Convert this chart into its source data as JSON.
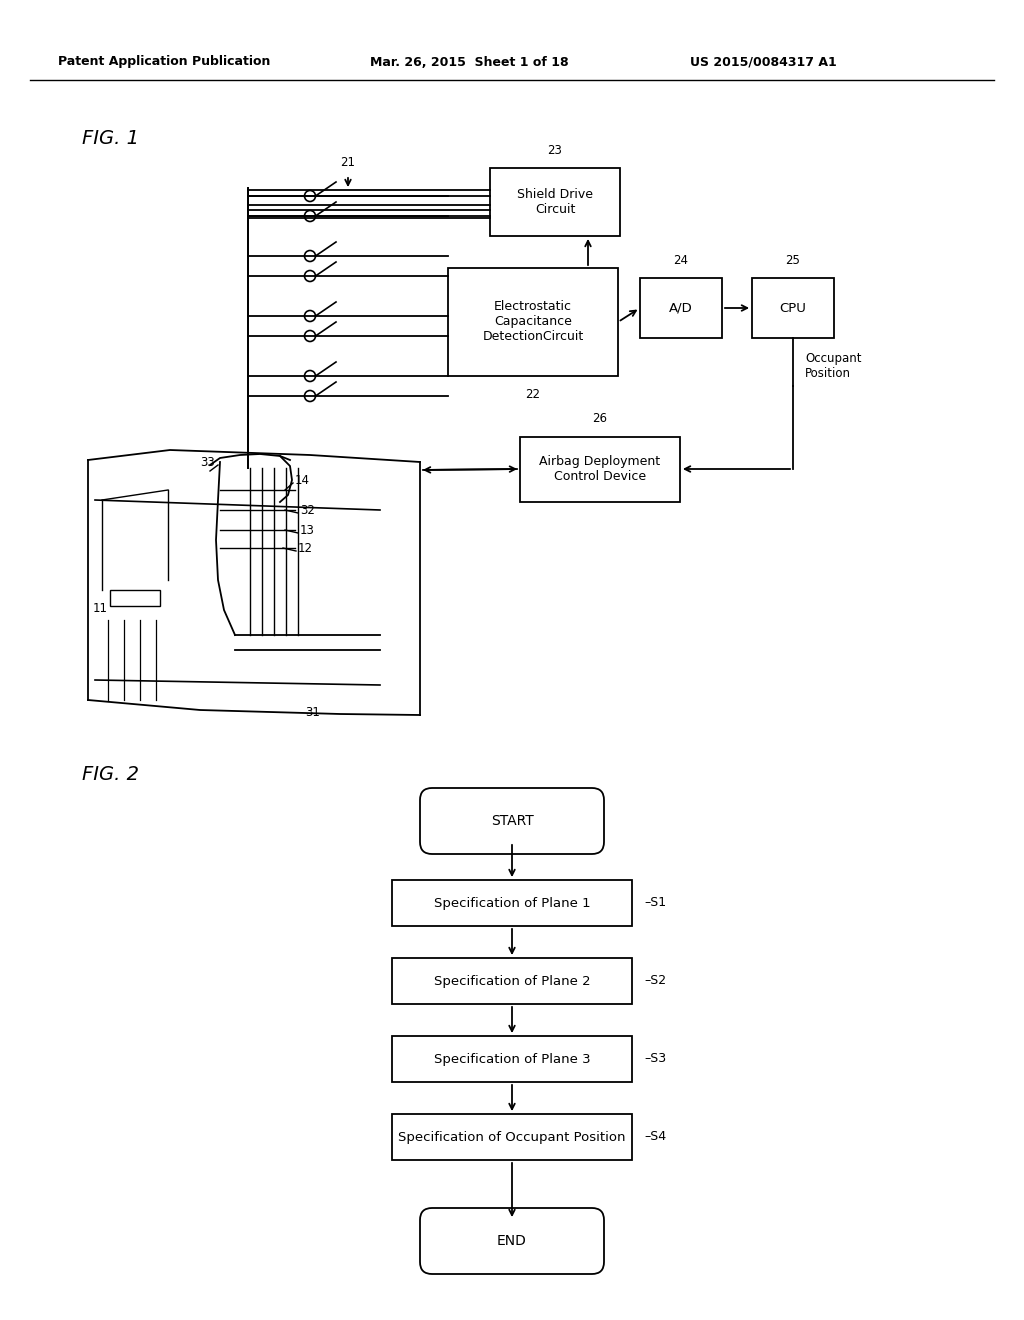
{
  "bg_color": "#ffffff",
  "text_color": "#000000",
  "header_left": "Patent Application Publication",
  "header_mid": "Mar. 26, 2015  Sheet 1 of 18",
  "header_right": "US 2015/0084317 A1",
  "fig1_label": "FIG. 1",
  "fig2_label": "FIG. 2"
}
